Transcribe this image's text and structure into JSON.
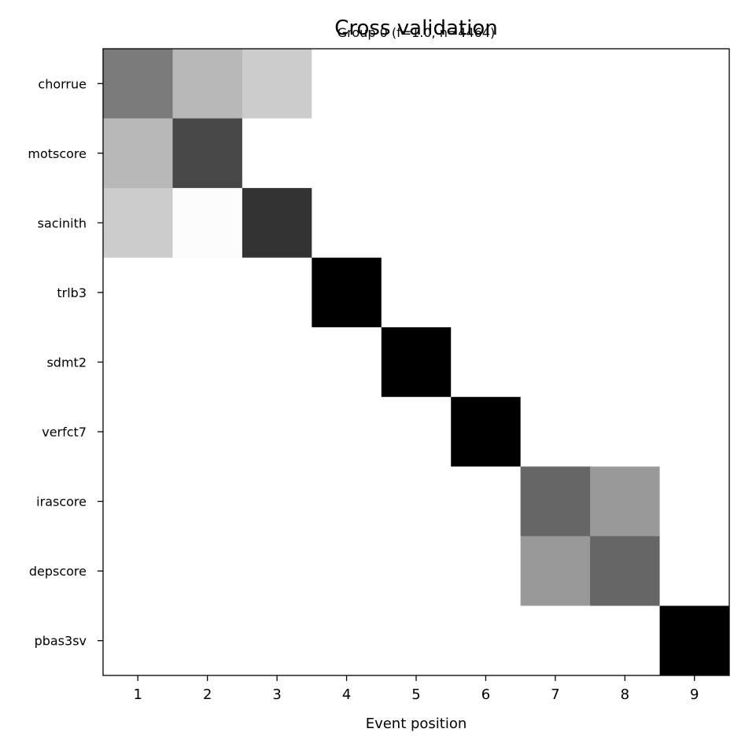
{
  "chart_data": {
    "type": "heatmap",
    "title": "Cross validation",
    "subtitle": "Group 0 (f=1.0, n=4464)",
    "xlabel": "Event position",
    "ylabel": "",
    "x_tick_labels": [
      "1",
      "2",
      "3",
      "4",
      "5",
      "6",
      "7",
      "8",
      "9"
    ],
    "y_tick_labels": [
      "chorrue",
      "motscore",
      "sacinith",
      "trlb3",
      "sdmt2",
      "verfct7",
      "irascore",
      "depscore",
      "pbas3sv"
    ],
    "colormap": "greys",
    "value_range": [
      0,
      1
    ],
    "values": [
      [
        0.52,
        0.28,
        0.2,
        0,
        0,
        0,
        0,
        0,
        0
      ],
      [
        0.28,
        0.72,
        0,
        0,
        0,
        0,
        0,
        0,
        0
      ],
      [
        0.2,
        0.01,
        0.8,
        0,
        0,
        0,
        0,
        0,
        0
      ],
      [
        0,
        0,
        0,
        1.0,
        0,
        0,
        0,
        0,
        0
      ],
      [
        0,
        0,
        0,
        0,
        1.0,
        0,
        0,
        0,
        0
      ],
      [
        0,
        0,
        0,
        0,
        0,
        1.0,
        0,
        0,
        0
      ],
      [
        0,
        0,
        0,
        0,
        0,
        0,
        0.6,
        0.4,
        0
      ],
      [
        0,
        0,
        0,
        0,
        0,
        0,
        0.4,
        0.6,
        0
      ],
      [
        0,
        0,
        0,
        0,
        0,
        0,
        0,
        0,
        1.0
      ]
    ],
    "grid": false,
    "legend": "none"
  }
}
